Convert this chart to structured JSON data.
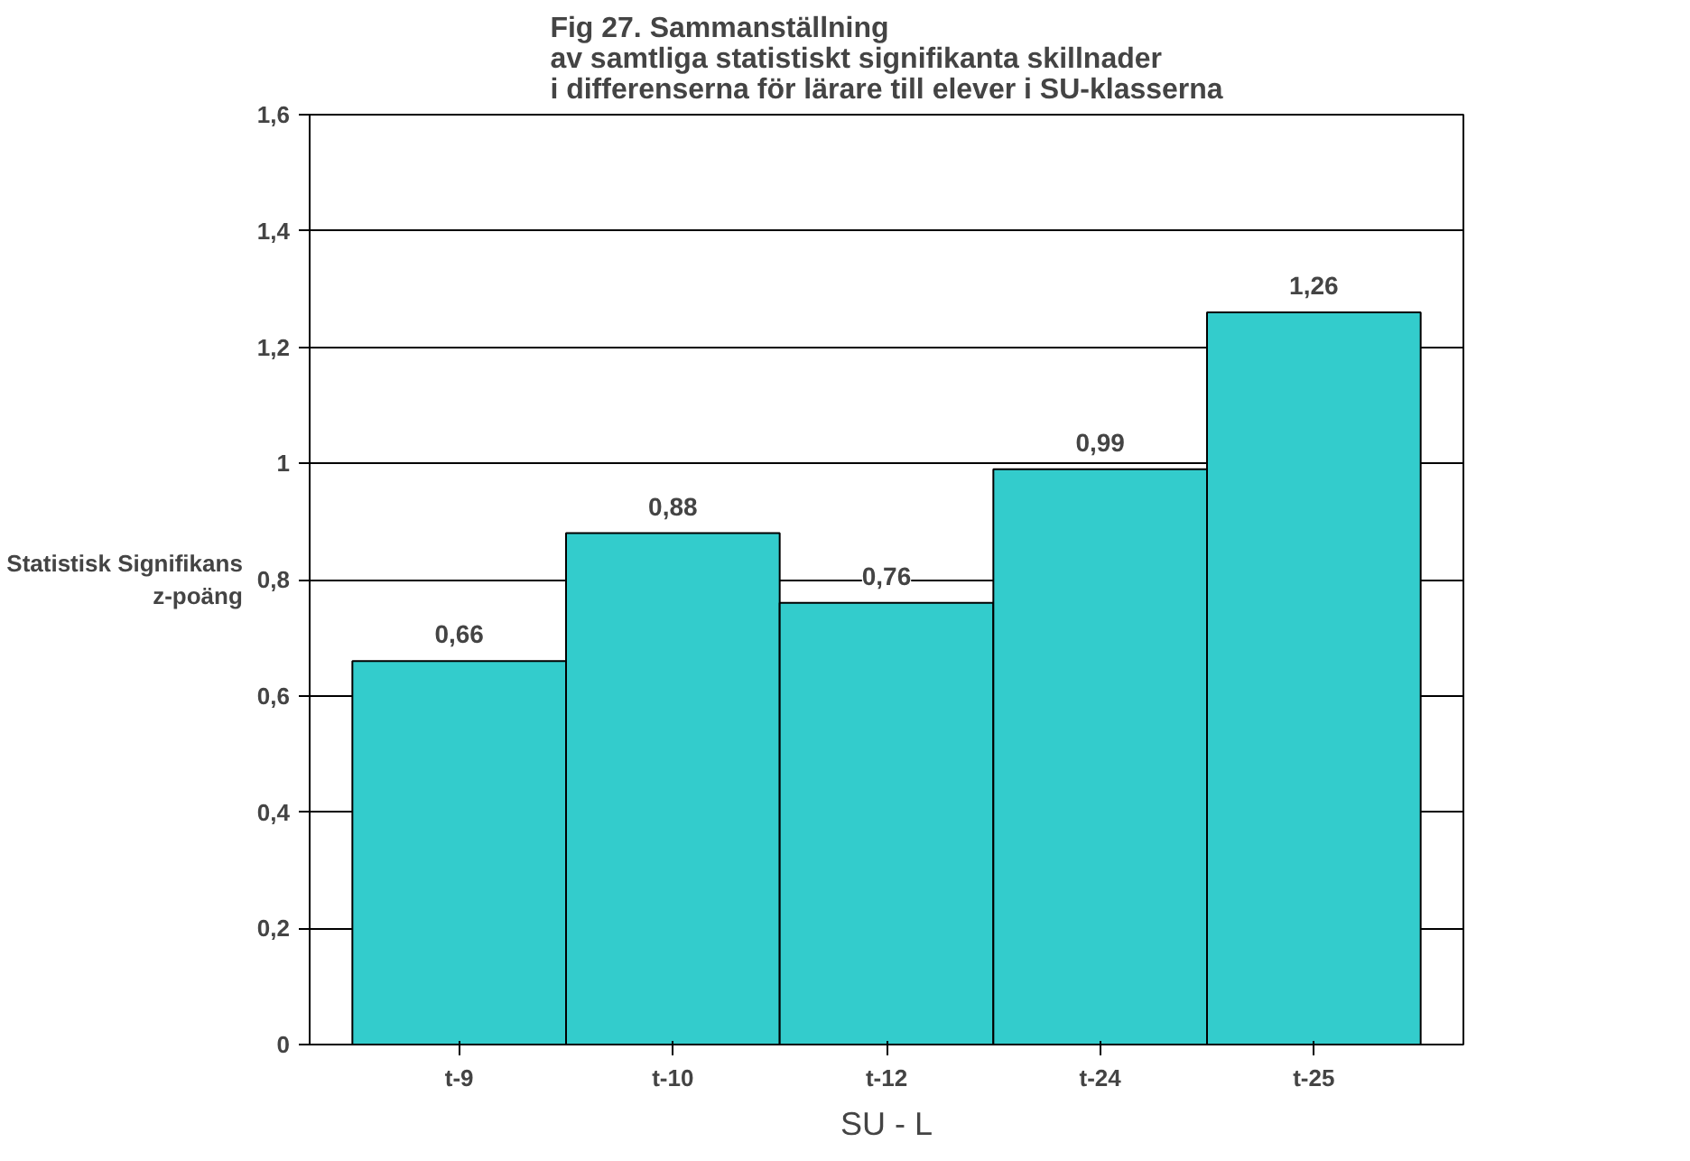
{
  "chart_data": {
    "type": "bar",
    "title": "Fig 27.  Sammanställning\nav samtliga statistiskt signifikanta skillnader\ni differenserna för lärare till elever i SU-klasserna",
    "xlabel": "SU - L",
    "ylabel": "Statistisk Signifikans\nz-poäng",
    "categories": [
      "t-9",
      "t-10",
      "t-12",
      "t-24",
      "t-25"
    ],
    "values": [
      0.66,
      0.88,
      0.76,
      0.99,
      1.26
    ],
    "value_labels": [
      "0,66",
      "0,88",
      "0,76",
      "0,99",
      "1,26"
    ],
    "color": "#33cccc",
    "ylim": [
      0,
      1.6
    ],
    "yticks": [
      0,
      {
        "value": 0.2,
        "label": "0,2"
      },
      {
        "value": 0.4,
        "label": "0,4"
      },
      {
        "value": 0.6,
        "label": "0,6"
      },
      {
        "value": 0.8,
        "label": "0,8"
      },
      1,
      {
        "value": 1.2,
        "label": "1,2"
      },
      {
        "value": 1.4,
        "label": "1,4"
      },
      {
        "value": 1.6,
        "label": "1,6"
      }
    ],
    "grid": "y"
  }
}
